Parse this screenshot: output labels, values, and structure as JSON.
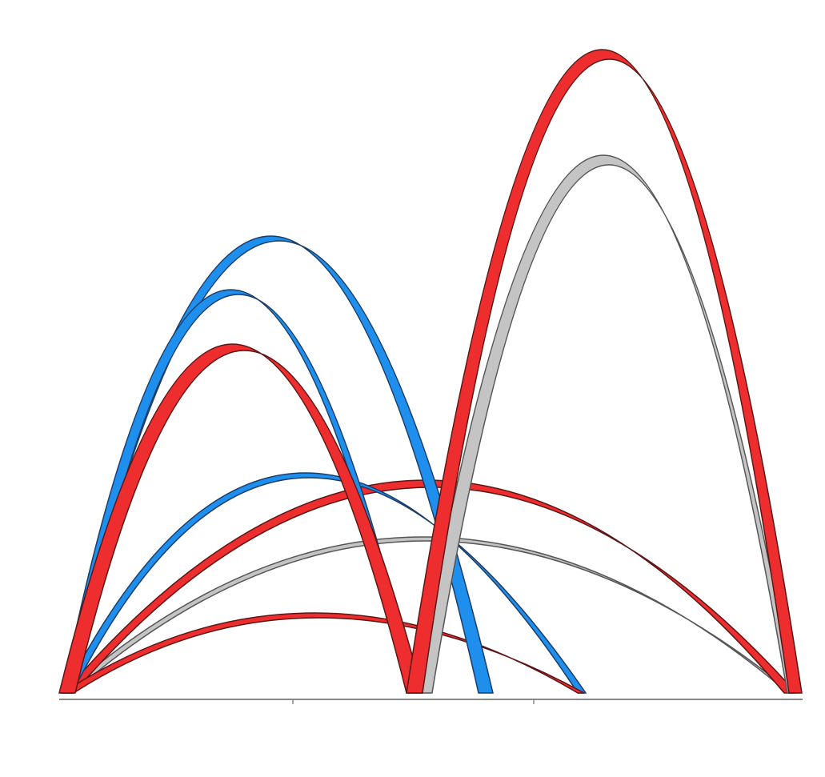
{
  "diagram": {
    "type": "arc-diagram",
    "description_label": "",
    "colors": {
      "red": "#ee2e2e",
      "blue": "#1f8fee",
      "gray": "#c4c4c4",
      "axis": "#888888",
      "outline": "#5a1616"
    },
    "arcs": [
      {
        "id": "arc-blue-tall-left",
        "color": "blue"
      },
      {
        "id": "arc-blue-mid-left",
        "color": "blue"
      },
      {
        "id": "arc-red-mid-left",
        "color": "red"
      },
      {
        "id": "arc-blue-wide",
        "color": "blue"
      },
      {
        "id": "arc-red-wide",
        "color": "red"
      },
      {
        "id": "arc-gray-wide",
        "color": "gray"
      },
      {
        "id": "arc-red-low",
        "color": "red"
      },
      {
        "id": "arc-red-tall-right",
        "color": "red"
      },
      {
        "id": "arc-gray-tall-right",
        "color": "gray"
      }
    ]
  }
}
